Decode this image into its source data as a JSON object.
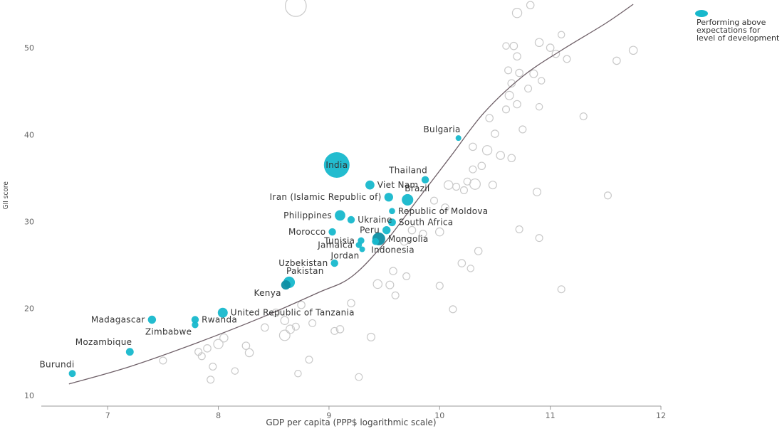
{
  "legend": {
    "label": "Performing above expectations for level of development",
    "color": "#17b8cc"
  },
  "chart_data": {
    "type": "scatter",
    "xlabel": "GDP per capita (PPP$ logarithmic scale)",
    "ylabel": "GII score",
    "xlim": [
      6.4,
      12
    ],
    "ylim": [
      9,
      55
    ],
    "x_ticks": [
      7,
      8,
      9,
      10,
      11,
      12
    ],
    "y_ticks": [
      10,
      20,
      30,
      40,
      50
    ],
    "grid": false,
    "highlight_color": "#17b8cc",
    "highlight_dark_color": "#0e8ea3",
    "other_color": "#c9c9c9",
    "trend_line": [
      [
        6.65,
        11.3
      ],
      [
        7.2,
        13.3
      ],
      [
        7.8,
        16.0
      ],
      [
        8.4,
        19.0
      ],
      [
        8.9,
        21.8
      ],
      [
        9.2,
        23.6
      ],
      [
        9.5,
        27.5
      ],
      [
        9.8,
        32.5
      ],
      [
        10.1,
        37.5
      ],
      [
        10.4,
        42.5
      ],
      [
        10.75,
        46.7
      ],
      [
        11.1,
        49.7
      ],
      [
        11.5,
        52.8
      ],
      [
        11.75,
        55.0
      ]
    ],
    "series": [
      {
        "name": "Performing above expectations for level of development",
        "points": [
          {
            "label": "India",
            "x": 9.07,
            "y": 36.5,
            "size": 12,
            "label_pos": "center"
          },
          {
            "label": "Bulgaria",
            "x": 10.17,
            "y": 39.6,
            "size": 0.6,
            "label_pos": "tl"
          },
          {
            "label": "Thailand",
            "x": 9.87,
            "y": 34.8,
            "size": 1.0,
            "label_pos": "tl"
          },
          {
            "label": "Viet Nam",
            "x": 9.37,
            "y": 34.2,
            "size": 1.5,
            "label_pos": "r"
          },
          {
            "label": "Iran (Islamic Republic of)",
            "x": 9.54,
            "y": 32.8,
            "size": 1.4,
            "label_pos": "l"
          },
          {
            "label": "Brazil",
            "x": 9.71,
            "y": 32.5,
            "size": 2.4,
            "label_pos": "tr"
          },
          {
            "label": "Republic of Moldova",
            "x": 9.57,
            "y": 31.2,
            "size": 0.7,
            "label_pos": "r"
          },
          {
            "label": "Philippines",
            "x": 9.1,
            "y": 30.7,
            "size": 2.0,
            "label_pos": "l"
          },
          {
            "label": "Ukraine",
            "x": 9.2,
            "y": 30.2,
            "size": 1.0,
            "label_pos": "r"
          },
          {
            "label": "South Africa",
            "x": 9.57,
            "y": 29.9,
            "size": 1.1,
            "label_pos": "r"
          },
          {
            "label": "Peru",
            "x": 9.52,
            "y": 29.0,
            "size": 1.2,
            "label_pos": "l"
          },
          {
            "label": "Morocco",
            "x": 9.03,
            "y": 28.8,
            "size": 1.0,
            "label_pos": "l"
          },
          {
            "label": "Tunisia",
            "x": 9.29,
            "y": 27.8,
            "size": 0.8,
            "label_pos": "l"
          },
          {
            "label": "Mongolia",
            "x": 9.45,
            "y": 28.0,
            "size": 3.0,
            "label_pos": "r",
            "dark": true
          },
          {
            "label": "Jamaica",
            "x": 9.27,
            "y": 27.3,
            "size": 0.7,
            "label_pos": "l"
          },
          {
            "label": "Indonesia",
            "x": 9.42,
            "y": 27.7,
            "size": 0.9,
            "label_pos": "rb"
          },
          {
            "label": "Jordan",
            "x": 9.3,
            "y": 26.8,
            "size": 0.6,
            "label_pos": "lb"
          },
          {
            "label": "Uzbekistan",
            "x": 9.05,
            "y": 25.2,
            "size": 1.0,
            "label_pos": "l"
          },
          {
            "label": "Pakistan",
            "x": 8.64,
            "y": 23.0,
            "size": 2.4,
            "label_pos": "tr"
          },
          {
            "label": "Kenya",
            "x": 8.61,
            "y": 22.7,
            "size": 1.6,
            "label_pos": "lb",
            "dark": true
          },
          {
            "label": "United Republic of Tanzania",
            "x": 8.04,
            "y": 19.5,
            "size": 1.8,
            "label_pos": "r"
          },
          {
            "label": "Madagascar",
            "x": 7.4,
            "y": 18.7,
            "size": 1.2,
            "label_pos": "l"
          },
          {
            "label": "Rwanda",
            "x": 7.79,
            "y": 18.7,
            "size": 1.0,
            "label_pos": "r"
          },
          {
            "label": "Zimbabwe",
            "x": 7.79,
            "y": 18.1,
            "size": 0.8,
            "label_pos": "lb"
          },
          {
            "label": "Mozambique",
            "x": 7.2,
            "y": 15.0,
            "size": 1.1,
            "label_pos": "tl"
          },
          {
            "label": "Burundi",
            "x": 6.68,
            "y": 12.5,
            "size": 0.9,
            "label_pos": "tl"
          }
        ]
      },
      {
        "name": "",
        "points": [
          {
            "x": 8.7,
            "y": 54.8,
            "size": 8
          },
          {
            "x": 10.82,
            "y": 54.9,
            "size": 1
          },
          {
            "x": 10.7,
            "y": 54.0,
            "size": 1.6
          },
          {
            "x": 11.1,
            "y": 51.5,
            "size": 0.8
          },
          {
            "x": 10.6,
            "y": 50.2,
            "size": 0.8
          },
          {
            "x": 10.67,
            "y": 50.2,
            "size": 1
          },
          {
            "x": 10.9,
            "y": 50.6,
            "size": 1.2
          },
          {
            "x": 11.0,
            "y": 50.0,
            "size": 1
          },
          {
            "x": 11.75,
            "y": 49.7,
            "size": 1.2
          },
          {
            "x": 10.7,
            "y": 49.0,
            "size": 1
          },
          {
            "x": 11.05,
            "y": 49.3,
            "size": 1
          },
          {
            "x": 11.15,
            "y": 48.7,
            "size": 0.9
          },
          {
            "x": 11.6,
            "y": 48.5,
            "size": 1
          },
          {
            "x": 10.62,
            "y": 47.4,
            "size": 0.9
          },
          {
            "x": 10.72,
            "y": 47.1,
            "size": 1
          },
          {
            "x": 10.85,
            "y": 47.0,
            "size": 1.1
          },
          {
            "x": 10.92,
            "y": 46.2,
            "size": 0.8
          },
          {
            "x": 10.65,
            "y": 45.9,
            "size": 1
          },
          {
            "x": 10.8,
            "y": 45.3,
            "size": 0.9
          },
          {
            "x": 10.63,
            "y": 44.5,
            "size": 1.3
          },
          {
            "x": 10.7,
            "y": 43.5,
            "size": 1
          },
          {
            "x": 10.9,
            "y": 43.2,
            "size": 0.8
          },
          {
            "x": 10.6,
            "y": 42.9,
            "size": 0.9
          },
          {
            "x": 11.3,
            "y": 42.1,
            "size": 0.9
          },
          {
            "x": 10.45,
            "y": 41.9,
            "size": 1
          },
          {
            "x": 10.75,
            "y": 40.6,
            "size": 0.9
          },
          {
            "x": 10.5,
            "y": 40.1,
            "size": 1
          },
          {
            "x": 10.3,
            "y": 38.6,
            "size": 1
          },
          {
            "x": 10.43,
            "y": 38.2,
            "size": 1.6
          },
          {
            "x": 10.55,
            "y": 37.6,
            "size": 1.2
          },
          {
            "x": 10.65,
            "y": 37.3,
            "size": 1
          },
          {
            "x": 10.38,
            "y": 36.4,
            "size": 1
          },
          {
            "x": 10.3,
            "y": 36.0,
            "size": 0.9
          },
          {
            "x": 10.25,
            "y": 34.6,
            "size": 0.9
          },
          {
            "x": 10.32,
            "y": 34.3,
            "size": 2.0
          },
          {
            "x": 10.48,
            "y": 34.2,
            "size": 1.1
          },
          {
            "x": 10.15,
            "y": 34.0,
            "size": 0.9
          },
          {
            "x": 10.22,
            "y": 33.6,
            "size": 0.9
          },
          {
            "x": 10.08,
            "y": 34.2,
            "size": 1.4
          },
          {
            "x": 10.88,
            "y": 33.4,
            "size": 1.1
          },
          {
            "x": 11.52,
            "y": 33.0,
            "size": 0.9
          },
          {
            "x": 9.95,
            "y": 32.4,
            "size": 0.9
          },
          {
            "x": 10.05,
            "y": 31.6,
            "size": 1
          },
          {
            "x": 9.75,
            "y": 29.0,
            "size": 1
          },
          {
            "x": 9.85,
            "y": 28.6,
            "size": 0.9
          },
          {
            "x": 10.0,
            "y": 28.8,
            "size": 1.2
          },
          {
            "x": 9.68,
            "y": 27.7,
            "size": 1
          },
          {
            "x": 10.72,
            "y": 29.1,
            "size": 0.9
          },
          {
            "x": 10.9,
            "y": 28.1,
            "size": 0.9
          },
          {
            "x": 10.35,
            "y": 26.6,
            "size": 1
          },
          {
            "x": 10.2,
            "y": 25.2,
            "size": 1
          },
          {
            "x": 10.28,
            "y": 24.6,
            "size": 0.8
          },
          {
            "x": 9.58,
            "y": 24.3,
            "size": 1
          },
          {
            "x": 9.7,
            "y": 23.7,
            "size": 0.9
          },
          {
            "x": 9.44,
            "y": 22.8,
            "size": 1.4
          },
          {
            "x": 9.55,
            "y": 22.7,
            "size": 1.1
          },
          {
            "x": 10.0,
            "y": 22.6,
            "size": 0.9
          },
          {
            "x": 9.6,
            "y": 21.5,
            "size": 0.9
          },
          {
            "x": 11.1,
            "y": 22.2,
            "size": 0.9
          },
          {
            "x": 9.2,
            "y": 20.6,
            "size": 1
          },
          {
            "x": 8.75,
            "y": 20.4,
            "size": 1
          },
          {
            "x": 8.52,
            "y": 19.5,
            "size": 1
          },
          {
            "x": 10.12,
            "y": 19.9,
            "size": 0.9
          },
          {
            "x": 8.85,
            "y": 18.3,
            "size": 0.9
          },
          {
            "x": 8.6,
            "y": 18.6,
            "size": 1.2
          },
          {
            "x": 8.42,
            "y": 17.8,
            "size": 1
          },
          {
            "x": 8.65,
            "y": 17.6,
            "size": 1.3
          },
          {
            "x": 8.7,
            "y": 17.9,
            "size": 0.9
          },
          {
            "x": 9.1,
            "y": 17.6,
            "size": 1
          },
          {
            "x": 9.05,
            "y": 17.4,
            "size": 0.9
          },
          {
            "x": 9.38,
            "y": 16.7,
            "size": 1.1
          },
          {
            "x": 8.6,
            "y": 16.9,
            "size": 2.0
          },
          {
            "x": 8.05,
            "y": 16.6,
            "size": 1.2
          },
          {
            "x": 8.0,
            "y": 15.9,
            "size": 1.6
          },
          {
            "x": 7.9,
            "y": 15.4,
            "size": 1
          },
          {
            "x": 7.82,
            "y": 15.0,
            "size": 0.9
          },
          {
            "x": 8.25,
            "y": 15.7,
            "size": 1
          },
          {
            "x": 8.28,
            "y": 14.9,
            "size": 1.2
          },
          {
            "x": 7.85,
            "y": 14.5,
            "size": 0.9
          },
          {
            "x": 7.5,
            "y": 14.0,
            "size": 0.9
          },
          {
            "x": 8.82,
            "y": 14.1,
            "size": 0.9
          },
          {
            "x": 7.95,
            "y": 13.3,
            "size": 0.9
          },
          {
            "x": 8.15,
            "y": 12.8,
            "size": 0.8
          },
          {
            "x": 8.72,
            "y": 12.5,
            "size": 0.8
          },
          {
            "x": 9.27,
            "y": 12.1,
            "size": 0.9
          },
          {
            "x": 7.93,
            "y": 11.8,
            "size": 0.9
          }
        ]
      }
    ]
  }
}
